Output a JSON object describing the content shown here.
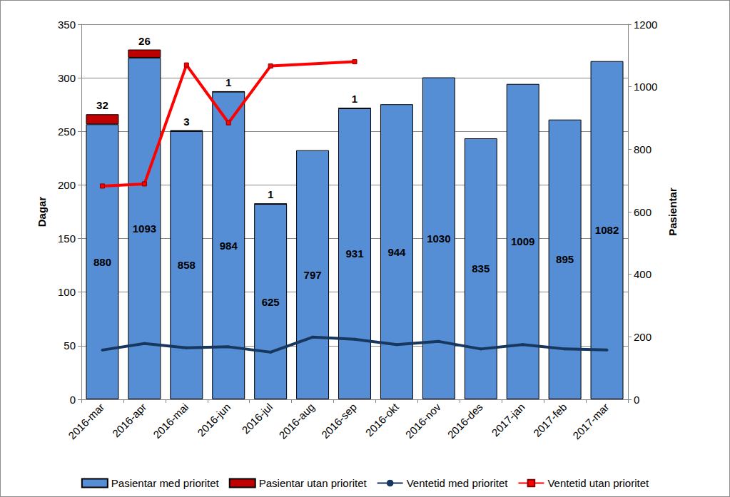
{
  "chart_data": {
    "type": "bar",
    "stacked": true,
    "grid": true,
    "legend": "bottom",
    "y_label": "Dagar",
    "y2_label": "Pasientar",
    "categories": [
      "2016-mar",
      "2016-apr",
      "2016-mai",
      "2016-jun",
      "2016-jul",
      "2016-aug",
      "2016-sep",
      "2016-okt",
      "2016-nov",
      "2016-des",
      "2017-jan",
      "2017-feb",
      "2017-mar"
    ],
    "ylim": [
      0,
      350
    ],
    "yticks": [
      0,
      50,
      100,
      150,
      200,
      250,
      300,
      350
    ],
    "y2lim": [
      0,
      1200
    ],
    "y2ticks": [
      0,
      200,
      400,
      600,
      800,
      1000,
      1200
    ],
    "series": [
      {
        "name": "Pasientar med prioritet",
        "type": "bar",
        "axis": "y2",
        "color": "#558ed5",
        "data_labels": true,
        "values": [
          880,
          1093,
          858,
          984,
          625,
          797,
          931,
          944,
          1030,
          835,
          1009,
          895,
          1082
        ]
      },
      {
        "name": "Pasientar utan prioritet",
        "type": "bar",
        "axis": "y2",
        "color": "#c00000",
        "data_labels": true,
        "values": [
          32,
          26,
          3,
          1,
          1,
          null,
          1,
          null,
          null,
          null,
          null,
          null,
          null
        ]
      },
      {
        "name": "Ventetid med prioritet",
        "type": "line",
        "color": "#17375e",
        "marker": "circle",
        "line_style": "solid",
        "data_labels": false,
        "values": [
          46,
          52,
          48,
          49,
          44,
          58,
          56,
          51,
          54,
          47,
          51,
          47,
          46
        ]
      },
      {
        "name": "Ventetid utan prioritet",
        "type": "line",
        "color": "#ff0000",
        "marker": "square",
        "line_style": "solid",
        "data_labels": false,
        "values": [
          199,
          201,
          312,
          258,
          311,
          null,
          315,
          null,
          null,
          null,
          null,
          null,
          null
        ]
      }
    ]
  }
}
